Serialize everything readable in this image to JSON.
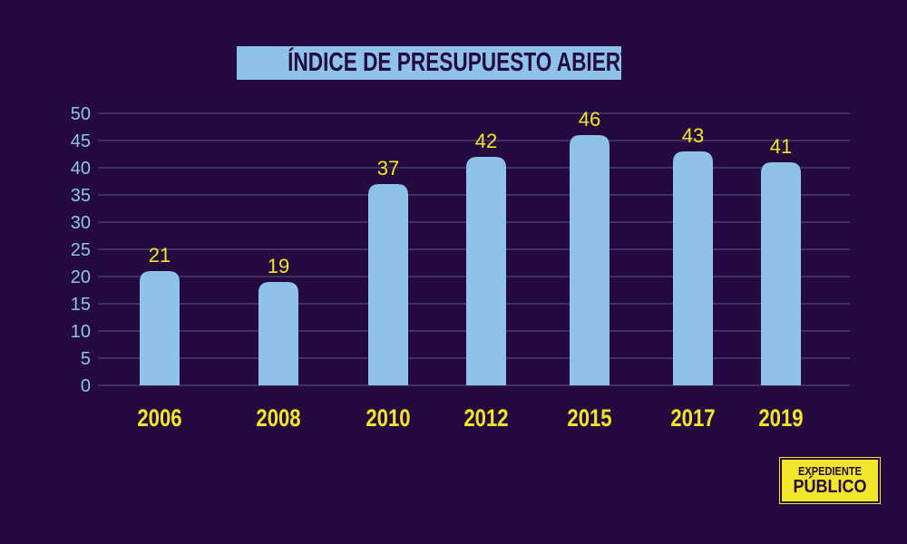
{
  "chart_data": {
    "type": "bar",
    "title": "ÍNDICE DE PRESUPUESTO ABIERTO",
    "categories": [
      "2006",
      "2008",
      "2010",
      "2012",
      "2015",
      "2017",
      "2019"
    ],
    "values": [
      21,
      19,
      37,
      42,
      46,
      43,
      41
    ],
    "yticks": [
      0,
      5,
      10,
      15,
      20,
      25,
      30,
      35,
      40,
      45,
      50
    ],
    "ylim": [
      0,
      50
    ],
    "xlabel": "",
    "ylabel": "",
    "grid": true,
    "colors": {
      "background": "#240a3e",
      "bar": "#8ec2ea",
      "label": "#f1e62b",
      "tick": "#8ec2ea",
      "grid": "#4b3a6b"
    }
  },
  "logo": {
    "line1": "EXPEDIENTE",
    "line2": "PÚBLICO"
  }
}
